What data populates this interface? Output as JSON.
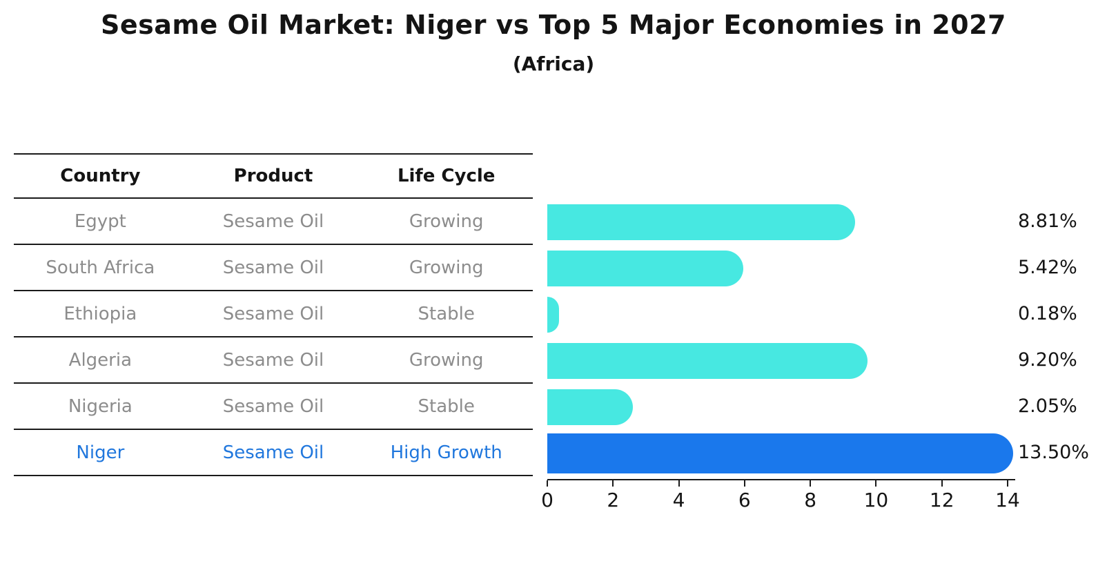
{
  "title": "Sesame Oil Market: Niger vs Top 5 Major Economies in 2027",
  "subtitle": "(Africa)",
  "table": {
    "columns": [
      "Country",
      "Product",
      "Life Cycle"
    ],
    "rows": [
      {
        "country": "Egypt",
        "product": "Sesame Oil",
        "life_cycle": "Growing",
        "highlight": false
      },
      {
        "country": "South Africa",
        "product": "Sesame Oil",
        "life_cycle": "Growing",
        "highlight": false
      },
      {
        "country": "Ethiopia",
        "product": "Sesame Oil",
        "life_cycle": "Stable",
        "highlight": false
      },
      {
        "country": "Algeria",
        "product": "Sesame Oil",
        "life_cycle": "Growing",
        "highlight": false
      },
      {
        "country": "Nigeria",
        "product": "Sesame Oil",
        "life_cycle": "Stable",
        "highlight": false
      },
      {
        "country": "Niger",
        "product": "Sesame Oil",
        "life_cycle": "High Growth",
        "highlight": true
      }
    ]
  },
  "chart_data": {
    "type": "bar",
    "orientation": "horizontal",
    "categories": [
      "Egypt",
      "South Africa",
      "Ethiopia",
      "Algeria",
      "Nigeria",
      "Niger"
    ],
    "values": [
      8.81,
      5.42,
      0.18,
      9.2,
      2.05,
      13.5
    ],
    "value_labels": [
      "8.81%",
      "5.42%",
      "0.18%",
      "9.20%",
      "2.05%",
      "13.50%"
    ],
    "highlight_index": 5,
    "xlim": [
      0,
      14
    ],
    "xticks": [
      "0",
      "2",
      "4",
      "6",
      "8",
      "10",
      "12",
      "14"
    ],
    "grid": false,
    "legend": false,
    "bar_style": "rounded-right-cap",
    "highlight_bar_style": "dotted-edge"
  },
  "colors": {
    "bar_default": "#47e8e1",
    "bar_highlight": "#1a78ec",
    "highlight_text": "#2077dd",
    "table_body_text": "#8c8c8c",
    "table_header_text": "#141414",
    "axis_line": "#1a1a1a",
    "value_label_text": "#141414",
    "background": "#ffffff"
  }
}
